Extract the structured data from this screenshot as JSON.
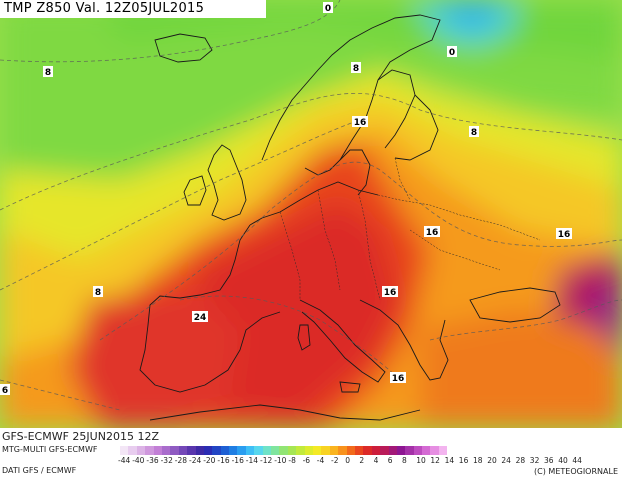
{
  "title": "TMP Z850 Val. 12Z05JUL2015",
  "run_info": "GFS-ECMWF 25JUN2015 12Z",
  "model_info": "MTG-MULTI GFS-ECMWF",
  "data_source": "DATI GFS / ECMWF",
  "copyright": "(C) METEOGIORNALE",
  "legend": {
    "ticks": [
      "-44",
      "-40",
      "-36",
      "-32",
      "-28",
      "-24",
      "-20",
      "-16",
      "-16",
      "-14",
      "-12",
      "-10",
      "-8",
      "-6",
      "-4",
      "-2",
      "0",
      "2",
      "4",
      "6",
      "8",
      "10",
      "12",
      "14",
      "16",
      "18",
      "20",
      "24",
      "28",
      "32",
      "36",
      "40",
      "44"
    ],
    "colors": [
      "#f3e6f6",
      "#e8cdef",
      "#dcb3e6",
      "#cf98dd",
      "#c27fd6",
      "#a96ccc",
      "#8f5bc2",
      "#7448b8",
      "#5936ad",
      "#3e2aa6",
      "#2b2cb3",
      "#2245c4",
      "#1e60d4",
      "#1f7ee3",
      "#2a9ef0",
      "#3ebff6",
      "#57d7ee",
      "#6fe3c8",
      "#7fe59e",
      "#91e574",
      "#a6e654",
      "#c2ea3c",
      "#ddec2d",
      "#f4ea26",
      "#f8d322",
      "#fab41f",
      "#f8921c",
      "#f26a1b",
      "#e9461f",
      "#dc2a28",
      "#cd1e3b",
      "#b91b59",
      "#a21878",
      "#8d1692",
      "#a431a8",
      "#bd4cbf",
      "#d46ad3",
      "#e68ee2",
      "#f3b4ef"
    ]
  },
  "isotherms": [
    {
      "label": "0"
    },
    {
      "label": "0"
    },
    {
      "label": "8"
    },
    {
      "label": "8"
    },
    {
      "label": "8"
    },
    {
      "label": "8"
    },
    {
      "label": "16"
    },
    {
      "label": "16"
    },
    {
      "label": "16"
    },
    {
      "label": "16"
    },
    {
      "label": "16"
    },
    {
      "label": "24"
    },
    {
      "label": "6"
    }
  ]
}
